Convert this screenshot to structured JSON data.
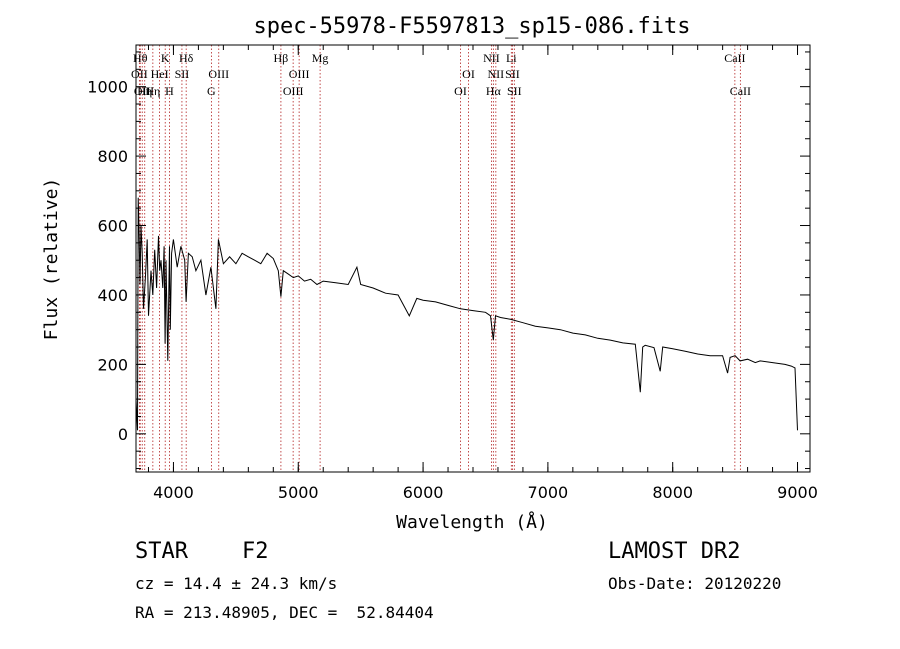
{
  "chart_data": {
    "type": "line",
    "title": "spec-55978-F5597813_sp15-086.fits",
    "xlabel": "Wavelength (Å)",
    "ylabel": "Flux (relative)",
    "xlim": [
      3700,
      9100
    ],
    "ylim": [
      -110,
      1120
    ],
    "xticks": [
      4000,
      5000,
      6000,
      7000,
      8000,
      9000
    ],
    "xtick_labels": [
      "4000",
      "5000",
      "6000",
      "7000",
      "8000",
      "9000"
    ],
    "yticks": [
      0,
      200,
      400,
      600,
      800,
      1000
    ],
    "ytick_labels": [
      "0",
      "200",
      "400",
      "600",
      "800",
      "1000"
    ],
    "grid": false,
    "series": [
      {
        "x": [
          3700,
          3712,
          3718,
          3725,
          3732,
          3740,
          3750,
          3760,
          3775,
          3790,
          3800,
          3820,
          3835,
          3850,
          3865,
          3880,
          3890,
          3900,
          3915,
          3925,
          3933,
          3940,
          3955,
          3968,
          3975,
          3985,
          4000,
          4030,
          4060,
          4090,
          4101,
          4120,
          4150,
          4180,
          4220,
          4260,
          4300,
          4340,
          4360,
          4400,
          4450,
          4500,
          4550,
          4600,
          4650,
          4700,
          4750,
          4800,
          4840,
          4861,
          4880,
          4920,
          4960,
          5000,
          5050,
          5100,
          5150,
          5200,
          5300,
          5400,
          5470,
          5500,
          5600,
          5700,
          5800,
          5890,
          5950,
          6000,
          6100,
          6200,
          6300,
          6400,
          6500,
          6540,
          6563,
          6580,
          6620,
          6700,
          6800,
          6900,
          7000,
          7100,
          7200,
          7300,
          7400,
          7500,
          7600,
          7700,
          7740,
          7760,
          7780,
          7850,
          7900,
          7920,
          8000,
          8100,
          8200,
          8300,
          8400,
          8440,
          8460,
          8500,
          8540,
          8600,
          8662,
          8700,
          8800,
          8900,
          8950,
          8980,
          9000
        ],
        "values": [
          100,
          10,
          680,
          580,
          430,
          600,
          520,
          360,
          450,
          560,
          340,
          470,
          400,
          530,
          420,
          570,
          470,
          500,
          420,
          540,
          260,
          500,
          210,
          540,
          300,
          520,
          560,
          480,
          540,
          500,
          380,
          520,
          510,
          470,
          500,
          400,
          480,
          360,
          560,
          490,
          510,
          490,
          520,
          510,
          500,
          490,
          520,
          505,
          470,
          395,
          470,
          460,
          450,
          455,
          440,
          445,
          430,
          440,
          435,
          430,
          480,
          430,
          420,
          405,
          400,
          340,
          390,
          385,
          380,
          370,
          360,
          355,
          350,
          340,
          270,
          340,
          335,
          330,
          320,
          310,
          305,
          300,
          290,
          285,
          275,
          270,
          262,
          258,
          120,
          250,
          255,
          248,
          180,
          250,
          245,
          238,
          230,
          225,
          225,
          175,
          220,
          225,
          210,
          215,
          205,
          210,
          205,
          200,
          195,
          190,
          10
        ]
      }
    ],
    "lines": [
      {
        "wl": 3734,
        "label": "Hθ",
        "row": 1
      },
      {
        "wl": 3727,
        "label": "OII",
        "row": 2
      },
      {
        "wl": 3750,
        "label": "OII",
        "row": 3
      },
      {
        "wl": 3770,
        "label": "Hη",
        "row": 3
      },
      {
        "wl": 3835,
        "label": "Hη",
        "row": 3
      },
      {
        "wl": 3889,
        "label": "HeI",
        "row": 2
      },
      {
        "wl": 3934,
        "label": "K",
        "row": 1
      },
      {
        "wl": 3968,
        "label": "H",
        "row": 3
      },
      {
        "wl": 4068,
        "label": "SII",
        "row": 2
      },
      {
        "wl": 4102,
        "label": "Hδ",
        "row": 1
      },
      {
        "wl": 4304,
        "label": "G",
        "row": 3
      },
      {
        "wl": 4363,
        "label": "OIII",
        "row": 2
      },
      {
        "wl": 4861,
        "label": "Hβ",
        "row": 1
      },
      {
        "wl": 4959,
        "label": "OIII",
        "row": 3
      },
      {
        "wl": 5007,
        "label": "OIII",
        "row": 2
      },
      {
        "wl": 5175,
        "label": "Mg",
        "row": 1
      },
      {
        "wl": 6300,
        "label": "OI",
        "row": 3
      },
      {
        "wl": 6364,
        "label": "OI",
        "row": 2
      },
      {
        "wl": 6548,
        "label": "NII",
        "row": 1
      },
      {
        "wl": 6563,
        "label": "Hα",
        "row": 3
      },
      {
        "wl": 6583,
        "label": "NII",
        "row": 2
      },
      {
        "wl": 6707,
        "label": "Li",
        "row": 1
      },
      {
        "wl": 6716,
        "label": "SII",
        "row": 2
      },
      {
        "wl": 6731,
        "label": "SII",
        "row": 3
      },
      {
        "wl": 8498,
        "label": "CaII",
        "row": 1
      },
      {
        "wl": 8542,
        "label": "CaII",
        "row": 3
      }
    ]
  },
  "info": {
    "class_label": "STAR",
    "subclass": "F2",
    "survey": "LAMOST DR2",
    "cz": "cz = 14.4 ± 24.3 km/s",
    "obs_date": "Obs-Date: 20120220",
    "coords": "RA = 213.48905, DEC =  52.84404"
  }
}
